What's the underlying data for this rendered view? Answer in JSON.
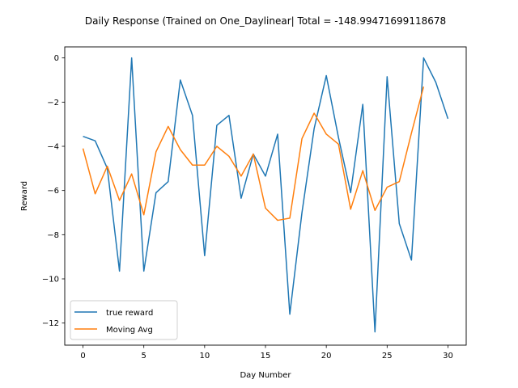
{
  "chart_data": {
    "type": "line",
    "title": "Daily Response (Trained on One_Daylinear| Total = -148.99471699118678",
    "xlabel": "Day Number",
    "ylabel": "Reward",
    "xlim": [
      -1.5,
      31.5
    ],
    "ylim": [
      -13,
      0.5
    ],
    "xticks": [
      0,
      5,
      10,
      15,
      20,
      25,
      30
    ],
    "yticks": [
      0,
      -2,
      -4,
      -6,
      -8,
      -10,
      -12
    ],
    "grid": false,
    "legend_position": "lower-left",
    "series": [
      {
        "name": "true reward",
        "color": "#1f77b4",
        "x": [
          0,
          1,
          2,
          3,
          4,
          5,
          6,
          7,
          8,
          9,
          10,
          11,
          12,
          13,
          14,
          15,
          16,
          17,
          18,
          19,
          20,
          21,
          22,
          23,
          24,
          25,
          26,
          27,
          28,
          29,
          30
        ],
        "values": [
          -3.55,
          -3.75,
          -5.0,
          -9.65,
          0.0,
          -9.65,
          -6.1,
          -5.6,
          -1.0,
          -2.6,
          -8.95,
          -3.05,
          -2.6,
          -6.35,
          -4.35,
          -5.35,
          -3.45,
          -11.6,
          -7.0,
          -3.2,
          -0.8,
          -3.6,
          -6.1,
          -2.1,
          -12.4,
          -0.85,
          -7.5,
          -9.15,
          0.0,
          -1.1,
          -2.75
        ]
      },
      {
        "name": "Moving Avg",
        "color": "#ff7f0e",
        "x": [
          0,
          1,
          2,
          3,
          4,
          5,
          6,
          7,
          8,
          9,
          10,
          11,
          12,
          13,
          14,
          15,
          16,
          17,
          18,
          19,
          20,
          21,
          22,
          23,
          24,
          25,
          26,
          27,
          28
        ],
        "values": [
          -4.1,
          -6.15,
          -4.9,
          -6.45,
          -5.25,
          -7.1,
          -4.25,
          -3.1,
          -4.15,
          -4.85,
          -4.85,
          -4.0,
          -4.45,
          -5.35,
          -4.35,
          -6.8,
          -7.35,
          -7.25,
          -3.65,
          -2.5,
          -3.45,
          -3.9,
          -6.85,
          -5.1,
          -6.9,
          -5.85,
          -5.6,
          -3.4,
          -1.3
        ]
      }
    ]
  }
}
